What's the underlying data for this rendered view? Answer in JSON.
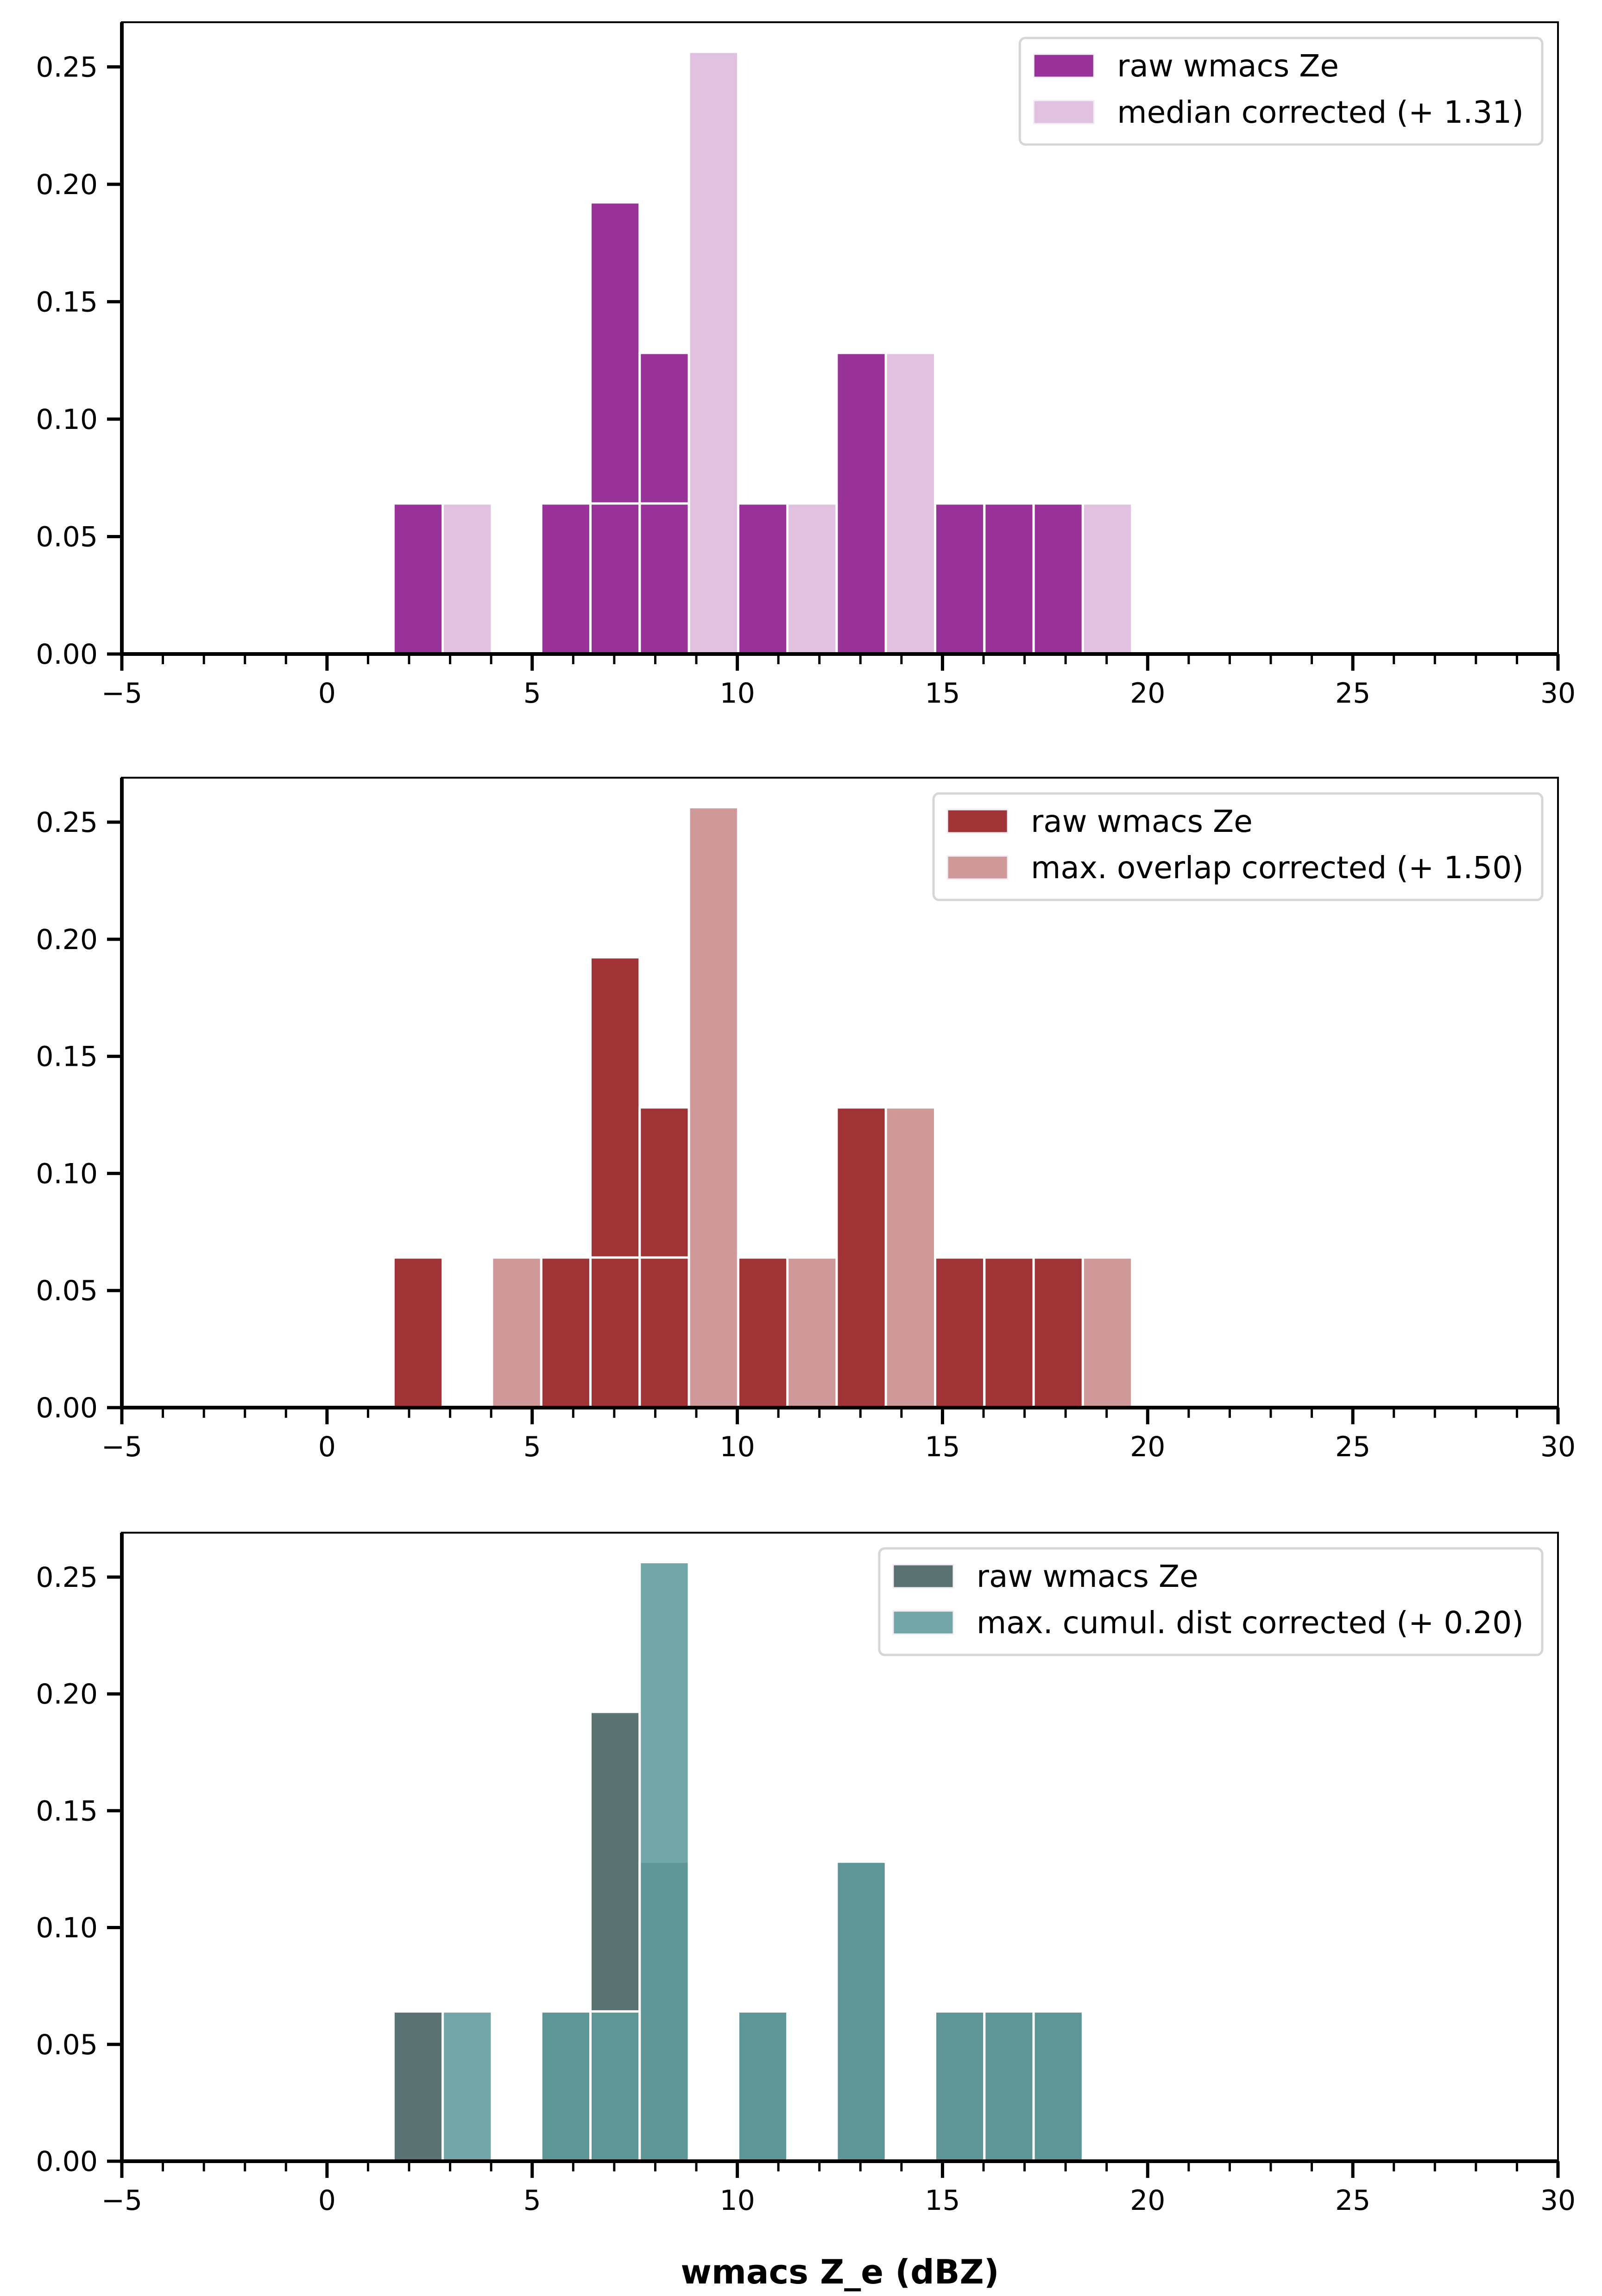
{
  "chart_data": [
    {
      "type": "bar",
      "subtype": "overlaid histogram (density)",
      "xlim": [
        -5,
        30
      ],
      "ylim": [
        0,
        0.269
      ],
      "xticks": [
        -5,
        0,
        5,
        10,
        15,
        20,
        25,
        30
      ],
      "xtick_labels": [
        "−5",
        "0",
        "5",
        "10",
        "15",
        "20",
        "25",
        "30"
      ],
      "yticks": [
        0.0,
        0.05,
        0.1,
        0.15,
        0.2,
        0.25
      ],
      "ytick_labels": [
        "0.00",
        "0.05",
        "0.10",
        "0.15",
        "0.20",
        "0.25"
      ],
      "xlabel": "",
      "ylabel": "",
      "legend_position": "top-right",
      "bin_edges": [
        1.62,
        2.82,
        4.02,
        5.22,
        6.42,
        7.62,
        8.82,
        10.02,
        11.22,
        12.42,
        13.62,
        14.82,
        16.02,
        17.22,
        18.42,
        19.62
      ],
      "series": [
        {
          "name": "raw wmacs Ze",
          "color": "#993399",
          "alpha": 1.0,
          "values": [
            0.0641,
            0,
            0,
            0.0641,
            0.1923,
            0.1282,
            0,
            0.0641,
            0,
            0.1282,
            0,
            0.0641,
            0.0641,
            0.0641,
            0
          ]
        },
        {
          "name": "median corrected (+ 1.31)",
          "color": "#993399",
          "alpha": 0.3,
          "values": [
            0,
            0.0641,
            0,
            0,
            0.0641,
            0.0641,
            0.2564,
            0,
            0.0641,
            0,
            0.1282,
            0,
            0.0641,
            0.0641,
            0.0641
          ]
        }
      ]
    },
    {
      "type": "bar",
      "subtype": "overlaid histogram (density)",
      "xlim": [
        -5,
        30
      ],
      "ylim": [
        0,
        0.269
      ],
      "xticks": [
        -5,
        0,
        5,
        10,
        15,
        20,
        25,
        30
      ],
      "xtick_labels": [
        "−5",
        "0",
        "5",
        "10",
        "15",
        "20",
        "25",
        "30"
      ],
      "yticks": [
        0.0,
        0.05,
        0.1,
        0.15,
        0.2,
        0.25
      ],
      "ytick_labels": [
        "0.00",
        "0.05",
        "0.10",
        "0.15",
        "0.20",
        "0.25"
      ],
      "xlabel": "",
      "ylabel": "",
      "legend_position": "top-right",
      "bin_edges": [
        1.62,
        2.82,
        4.02,
        5.22,
        6.42,
        7.62,
        8.82,
        10.02,
        11.22,
        12.42,
        13.62,
        14.82,
        16.02,
        17.22,
        18.42,
        19.62
      ],
      "series": [
        {
          "name": "raw wmacs Ze",
          "color": "#a03335",
          "alpha": 1.0,
          "values": [
            0.0641,
            0,
            0,
            0.0641,
            0.1923,
            0.1282,
            0,
            0.0641,
            0,
            0.1282,
            0,
            0.0641,
            0.0641,
            0.0641,
            0
          ]
        },
        {
          "name": "max. overlap corrected (+ 1.50)",
          "color": "#a03335",
          "alpha": 0.5,
          "values": [
            0,
            0,
            0.0641,
            0,
            0.0641,
            0.0641,
            0.2564,
            0,
            0.0641,
            0,
            0.1282,
            0,
            0.0641,
            0.0641,
            0.0641
          ]
        }
      ]
    },
    {
      "type": "bar",
      "subtype": "overlaid histogram (density)",
      "xlim": [
        -5,
        30
      ],
      "ylim": [
        0,
        0.269
      ],
      "xticks": [
        -5,
        0,
        5,
        10,
        15,
        20,
        25,
        30
      ],
      "xtick_labels": [
        "−5",
        "0",
        "5",
        "10",
        "15",
        "20",
        "25",
        "30"
      ],
      "yticks": [
        0.0,
        0.05,
        0.1,
        0.15,
        0.2,
        0.25
      ],
      "ytick_labels": [
        "0.00",
        "0.05",
        "0.10",
        "0.15",
        "0.20",
        "0.25"
      ],
      "xlabel": "wmacs Z_e (dBZ)",
      "ylabel": "",
      "legend_position": "top-right",
      "bin_edges": [
        1.62,
        2.82,
        4.02,
        5.22,
        6.42,
        7.62,
        8.82,
        10.02,
        11.22,
        12.42,
        13.62,
        14.82,
        16.02,
        17.22,
        18.42,
        19.62
      ],
      "series": [
        {
          "name": "raw wmacs Ze",
          "color": "#5a7372",
          "alpha": 1.0,
          "values": [
            0.0641,
            0,
            0,
            0.0641,
            0.1923,
            0.1282,
            0,
            0.0641,
            0,
            0.1282,
            0,
            0.0641,
            0.0641,
            0.0641,
            0
          ]
        },
        {
          "name": "max. cumul. dist corrected (+ 0.20)",
          "color": "#5e9a9b",
          "alpha": 0.88,
          "values": [
            0,
            0.0641,
            0,
            0.0641,
            0.0641,
            0.2564,
            0,
            0.0641,
            0,
            0.1282,
            0,
            0.0641,
            0.0641,
            0.0641,
            0
          ]
        }
      ]
    }
  ]
}
